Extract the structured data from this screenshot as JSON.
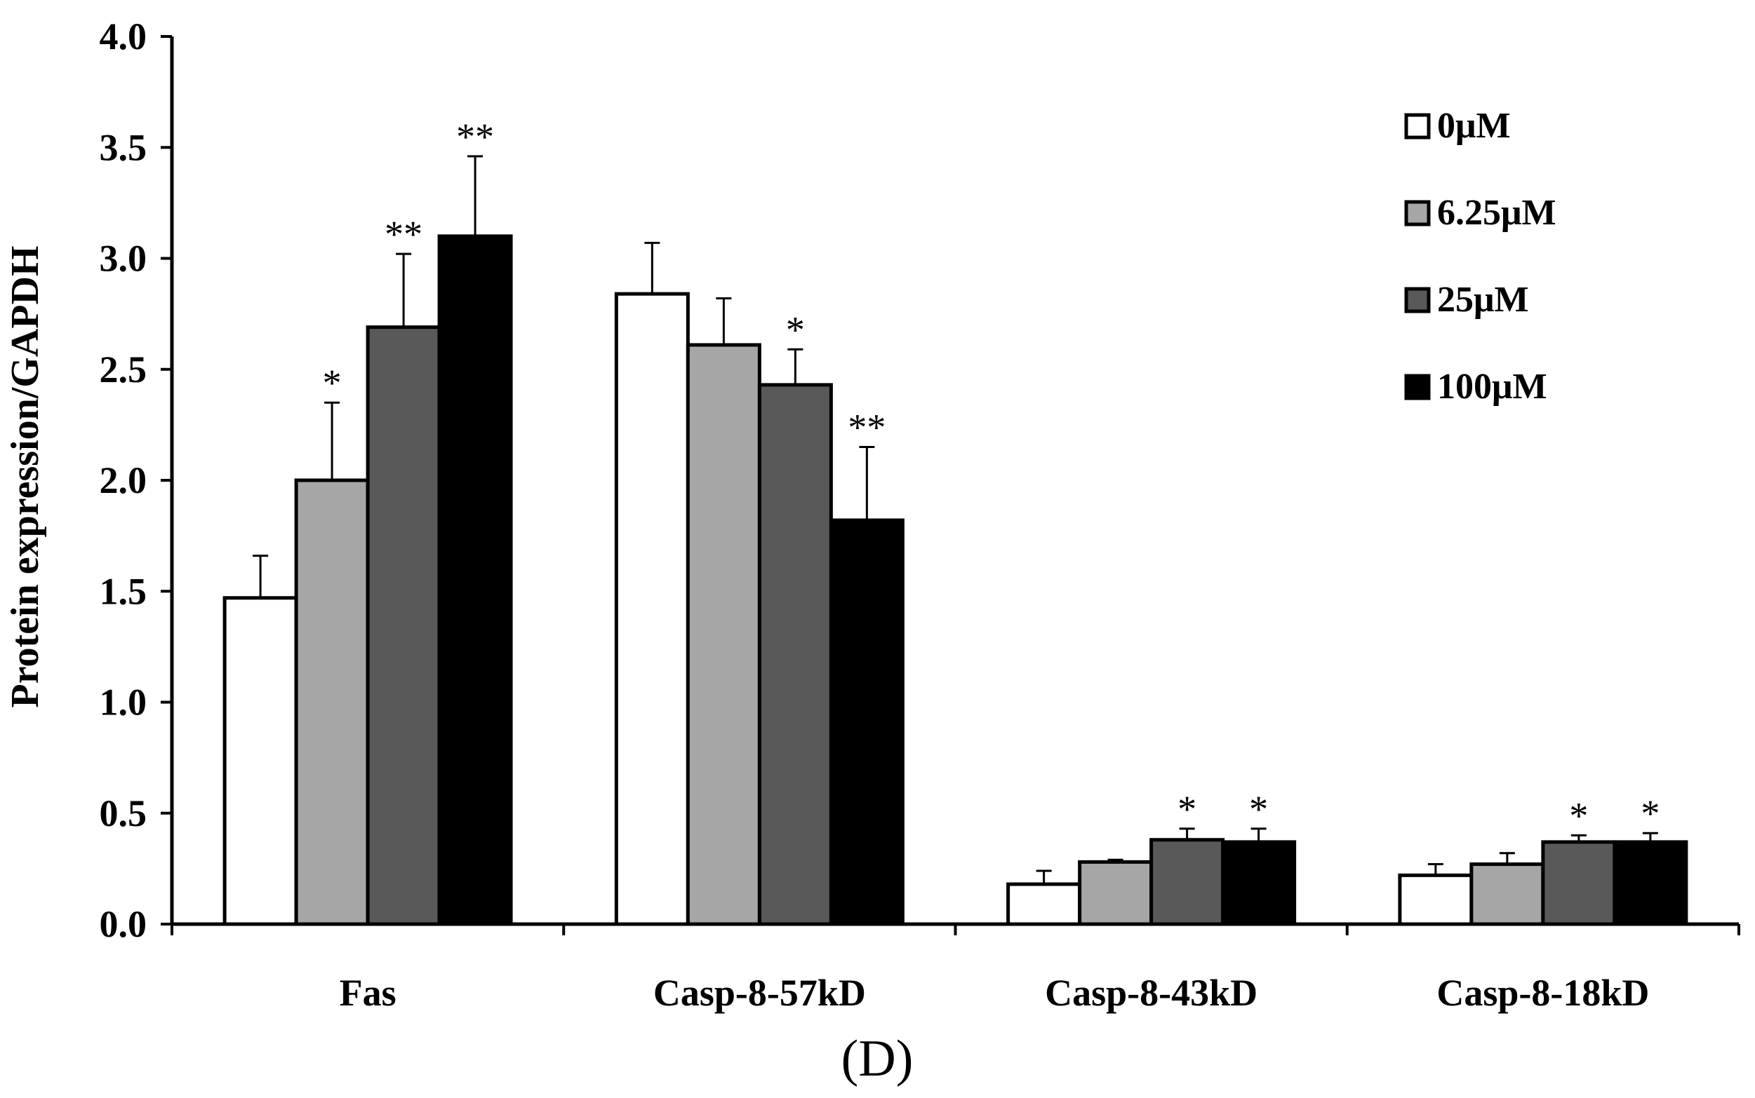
{
  "chart_data": {
    "type": "bar",
    "title": "",
    "panel_label": "(D)",
    "xlabel": "",
    "ylabel": "Protein expression/GAPDH",
    "ylim": [
      0,
      4.0
    ],
    "yticks": [
      "0.0",
      "0.5",
      "1.0",
      "1.5",
      "2.0",
      "2.5",
      "3.0",
      "3.5",
      "4.0"
    ],
    "categories": [
      "Fas",
      "Casp-8-57kD",
      "Casp-8-43kD",
      "Casp-8-18kD"
    ],
    "legend_position": "top-right",
    "grid": false,
    "series": [
      {
        "name": "0μM",
        "color": "#ffffff",
        "values": [
          1.47,
          2.84,
          0.18,
          0.22
        ],
        "errors": [
          0.19,
          0.23,
          0.06,
          0.05
        ],
        "significance": [
          "",
          "",
          "",
          ""
        ]
      },
      {
        "name": "6.25μM",
        "color": "#a6a6a6",
        "values": [
          2.0,
          2.61,
          0.28,
          0.27
        ],
        "errors": [
          0.35,
          0.21,
          0.01,
          0.05
        ],
        "significance": [
          "*",
          "",
          "",
          ""
        ]
      },
      {
        "name": "25μM",
        "color": "#595959",
        "values": [
          2.69,
          2.43,
          0.38,
          0.37
        ],
        "errors": [
          0.33,
          0.16,
          0.05,
          0.03
        ],
        "significance": [
          "**",
          "*",
          "*",
          "*"
        ]
      },
      {
        "name": "100μM",
        "color": "#000000",
        "values": [
          3.1,
          1.82,
          0.37,
          0.37
        ],
        "errors": [
          0.36,
          0.33,
          0.06,
          0.04
        ],
        "significance": [
          "**",
          "**",
          "*",
          "*"
        ]
      }
    ]
  }
}
